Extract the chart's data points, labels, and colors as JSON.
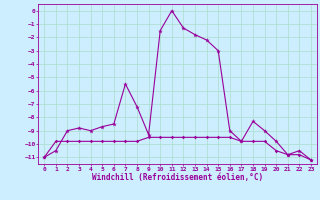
{
  "xlabel": "Windchill (Refroidissement éolien,°C)",
  "x": [
    0,
    1,
    2,
    3,
    4,
    5,
    6,
    7,
    8,
    9,
    10,
    11,
    12,
    13,
    14,
    15,
    16,
    17,
    18,
    19,
    20,
    21,
    22,
    23
  ],
  "line1": [
    -11.0,
    -10.5,
    -9.0,
    -8.8,
    -9.0,
    -8.7,
    -8.5,
    -5.5,
    -7.2,
    -9.3,
    -1.5,
    0.0,
    -1.3,
    -1.8,
    -2.2,
    -3.0,
    -9.0,
    -9.8,
    -8.3,
    -9.0,
    -9.8,
    -10.8,
    -10.5,
    -11.2
  ],
  "line2": [
    -11.0,
    -9.8,
    -9.8,
    -9.8,
    -9.8,
    -9.8,
    -9.8,
    -9.8,
    -9.8,
    -9.5,
    -9.5,
    -9.5,
    -9.5,
    -9.5,
    -9.5,
    -9.5,
    -9.5,
    -9.8,
    -9.8,
    -9.8,
    -10.5,
    -10.8,
    -10.8,
    -11.2
  ],
  "ylim": [
    -11.5,
    0.5
  ],
  "xlim": [
    -0.5,
    23.5
  ],
  "yticks": [
    0,
    -1,
    -2,
    -3,
    -4,
    -5,
    -6,
    -7,
    -8,
    -9,
    -10,
    -11
  ],
  "xticks": [
    0,
    1,
    2,
    3,
    4,
    5,
    6,
    7,
    8,
    9,
    10,
    11,
    12,
    13,
    14,
    15,
    16,
    17,
    18,
    19,
    20,
    21,
    22,
    23
  ],
  "line_color": "#990099",
  "bg_color": "#cceeff",
  "grid_color": "#aaddcc"
}
